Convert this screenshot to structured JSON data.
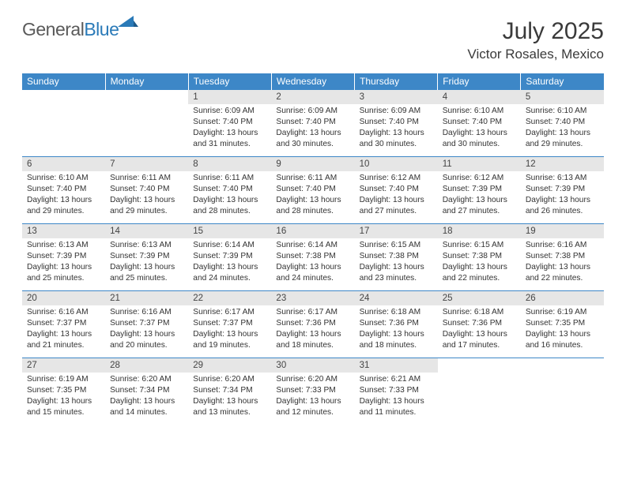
{
  "logo": {
    "text1": "General",
    "text2": "Blue",
    "color1": "#5a5a5a",
    "color2": "#2a7ab8"
  },
  "header": {
    "month": "July 2025",
    "location": "Victor Rosales, Mexico"
  },
  "colors": {
    "header_bg": "#3d87c7",
    "header_text": "#ffffff",
    "daynum_bg": "#e6e6e6",
    "border": "#3d87c7",
    "text": "#333333",
    "background": "#ffffff"
  },
  "calendar": {
    "day_labels": [
      "Sunday",
      "Monday",
      "Tuesday",
      "Wednesday",
      "Thursday",
      "Friday",
      "Saturday"
    ],
    "weeks": [
      [
        null,
        null,
        {
          "n": "1",
          "sr": "Sunrise: 6:09 AM",
          "ss": "Sunset: 7:40 PM",
          "d1": "Daylight: 13 hours",
          "d2": "and 31 minutes."
        },
        {
          "n": "2",
          "sr": "Sunrise: 6:09 AM",
          "ss": "Sunset: 7:40 PM",
          "d1": "Daylight: 13 hours",
          "d2": "and 30 minutes."
        },
        {
          "n": "3",
          "sr": "Sunrise: 6:09 AM",
          "ss": "Sunset: 7:40 PM",
          "d1": "Daylight: 13 hours",
          "d2": "and 30 minutes."
        },
        {
          "n": "4",
          "sr": "Sunrise: 6:10 AM",
          "ss": "Sunset: 7:40 PM",
          "d1": "Daylight: 13 hours",
          "d2": "and 30 minutes."
        },
        {
          "n": "5",
          "sr": "Sunrise: 6:10 AM",
          "ss": "Sunset: 7:40 PM",
          "d1": "Daylight: 13 hours",
          "d2": "and 29 minutes."
        }
      ],
      [
        {
          "n": "6",
          "sr": "Sunrise: 6:10 AM",
          "ss": "Sunset: 7:40 PM",
          "d1": "Daylight: 13 hours",
          "d2": "and 29 minutes."
        },
        {
          "n": "7",
          "sr": "Sunrise: 6:11 AM",
          "ss": "Sunset: 7:40 PM",
          "d1": "Daylight: 13 hours",
          "d2": "and 29 minutes."
        },
        {
          "n": "8",
          "sr": "Sunrise: 6:11 AM",
          "ss": "Sunset: 7:40 PM",
          "d1": "Daylight: 13 hours",
          "d2": "and 28 minutes."
        },
        {
          "n": "9",
          "sr": "Sunrise: 6:11 AM",
          "ss": "Sunset: 7:40 PM",
          "d1": "Daylight: 13 hours",
          "d2": "and 28 minutes."
        },
        {
          "n": "10",
          "sr": "Sunrise: 6:12 AM",
          "ss": "Sunset: 7:40 PM",
          "d1": "Daylight: 13 hours",
          "d2": "and 27 minutes."
        },
        {
          "n": "11",
          "sr": "Sunrise: 6:12 AM",
          "ss": "Sunset: 7:39 PM",
          "d1": "Daylight: 13 hours",
          "d2": "and 27 minutes."
        },
        {
          "n": "12",
          "sr": "Sunrise: 6:13 AM",
          "ss": "Sunset: 7:39 PM",
          "d1": "Daylight: 13 hours",
          "d2": "and 26 minutes."
        }
      ],
      [
        {
          "n": "13",
          "sr": "Sunrise: 6:13 AM",
          "ss": "Sunset: 7:39 PM",
          "d1": "Daylight: 13 hours",
          "d2": "and 25 minutes."
        },
        {
          "n": "14",
          "sr": "Sunrise: 6:13 AM",
          "ss": "Sunset: 7:39 PM",
          "d1": "Daylight: 13 hours",
          "d2": "and 25 minutes."
        },
        {
          "n": "15",
          "sr": "Sunrise: 6:14 AM",
          "ss": "Sunset: 7:39 PM",
          "d1": "Daylight: 13 hours",
          "d2": "and 24 minutes."
        },
        {
          "n": "16",
          "sr": "Sunrise: 6:14 AM",
          "ss": "Sunset: 7:38 PM",
          "d1": "Daylight: 13 hours",
          "d2": "and 24 minutes."
        },
        {
          "n": "17",
          "sr": "Sunrise: 6:15 AM",
          "ss": "Sunset: 7:38 PM",
          "d1": "Daylight: 13 hours",
          "d2": "and 23 minutes."
        },
        {
          "n": "18",
          "sr": "Sunrise: 6:15 AM",
          "ss": "Sunset: 7:38 PM",
          "d1": "Daylight: 13 hours",
          "d2": "and 22 minutes."
        },
        {
          "n": "19",
          "sr": "Sunrise: 6:16 AM",
          "ss": "Sunset: 7:38 PM",
          "d1": "Daylight: 13 hours",
          "d2": "and 22 minutes."
        }
      ],
      [
        {
          "n": "20",
          "sr": "Sunrise: 6:16 AM",
          "ss": "Sunset: 7:37 PM",
          "d1": "Daylight: 13 hours",
          "d2": "and 21 minutes."
        },
        {
          "n": "21",
          "sr": "Sunrise: 6:16 AM",
          "ss": "Sunset: 7:37 PM",
          "d1": "Daylight: 13 hours",
          "d2": "and 20 minutes."
        },
        {
          "n": "22",
          "sr": "Sunrise: 6:17 AM",
          "ss": "Sunset: 7:37 PM",
          "d1": "Daylight: 13 hours",
          "d2": "and 19 minutes."
        },
        {
          "n": "23",
          "sr": "Sunrise: 6:17 AM",
          "ss": "Sunset: 7:36 PM",
          "d1": "Daylight: 13 hours",
          "d2": "and 18 minutes."
        },
        {
          "n": "24",
          "sr": "Sunrise: 6:18 AM",
          "ss": "Sunset: 7:36 PM",
          "d1": "Daylight: 13 hours",
          "d2": "and 18 minutes."
        },
        {
          "n": "25",
          "sr": "Sunrise: 6:18 AM",
          "ss": "Sunset: 7:36 PM",
          "d1": "Daylight: 13 hours",
          "d2": "and 17 minutes."
        },
        {
          "n": "26",
          "sr": "Sunrise: 6:19 AM",
          "ss": "Sunset: 7:35 PM",
          "d1": "Daylight: 13 hours",
          "d2": "and 16 minutes."
        }
      ],
      [
        {
          "n": "27",
          "sr": "Sunrise: 6:19 AM",
          "ss": "Sunset: 7:35 PM",
          "d1": "Daylight: 13 hours",
          "d2": "and 15 minutes."
        },
        {
          "n": "28",
          "sr": "Sunrise: 6:20 AM",
          "ss": "Sunset: 7:34 PM",
          "d1": "Daylight: 13 hours",
          "d2": "and 14 minutes."
        },
        {
          "n": "29",
          "sr": "Sunrise: 6:20 AM",
          "ss": "Sunset: 7:34 PM",
          "d1": "Daylight: 13 hours",
          "d2": "and 13 minutes."
        },
        {
          "n": "30",
          "sr": "Sunrise: 6:20 AM",
          "ss": "Sunset: 7:33 PM",
          "d1": "Daylight: 13 hours",
          "d2": "and 12 minutes."
        },
        {
          "n": "31",
          "sr": "Sunrise: 6:21 AM",
          "ss": "Sunset: 7:33 PM",
          "d1": "Daylight: 13 hours",
          "d2": "and 11 minutes."
        },
        null,
        null
      ]
    ]
  }
}
